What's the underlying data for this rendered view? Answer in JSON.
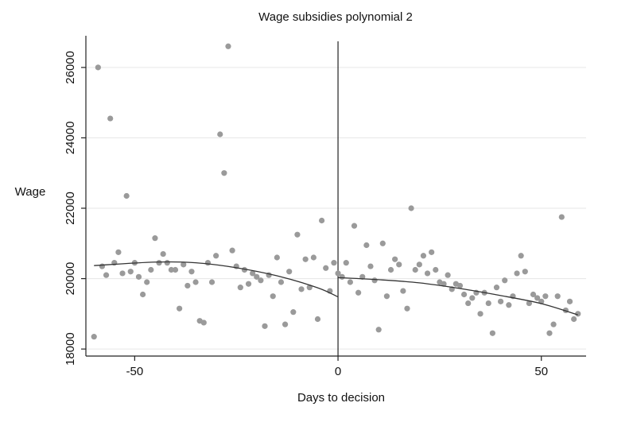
{
  "chart_data": {
    "type": "scatter",
    "title": "Wage subsidies polynomial 2",
    "xlabel": "Days to decision",
    "ylabel": "Wage",
    "xlim": [
      -62,
      61
    ],
    "ylim": [
      17800,
      26900
    ],
    "xticks": [
      -50,
      0,
      50
    ],
    "yticks": [
      18000,
      20000,
      22000,
      24000,
      26000
    ],
    "grid": true,
    "cutoff": 0,
    "colors": {
      "points": "#9a9a9a",
      "fit": "#333333",
      "grid": "#e6e6e6",
      "axis": "#222222"
    },
    "series": [
      {
        "points": [
          [
            -60,
            18350
          ],
          [
            -59,
            26000
          ],
          [
            -58,
            20350
          ],
          [
            -57,
            20100
          ],
          [
            -56,
            24550
          ],
          [
            -55,
            20450
          ],
          [
            -54,
            20750
          ],
          [
            -53,
            20150
          ],
          [
            -52,
            22350
          ],
          [
            -51,
            20200
          ],
          [
            -50,
            20450
          ],
          [
            -49,
            20050
          ],
          [
            -48,
            19550
          ],
          [
            -47,
            19900
          ],
          [
            -46,
            20250
          ],
          [
            -45,
            21150
          ],
          [
            -44,
            20450
          ],
          [
            -43,
            20700
          ],
          [
            -42,
            20450
          ],
          [
            -41,
            20250
          ],
          [
            -40,
            20250
          ],
          [
            -39,
            19150
          ],
          [
            -38,
            20400
          ],
          [
            -37,
            19800
          ],
          [
            -36,
            20200
          ],
          [
            -35,
            19900
          ],
          [
            -34,
            18800
          ],
          [
            -33,
            18750
          ],
          [
            -32,
            20450
          ],
          [
            -31,
            19900
          ],
          [
            -30,
            20650
          ],
          [
            -29,
            24100
          ],
          [
            -28,
            23000
          ],
          [
            -27,
            26600
          ],
          [
            -26,
            20800
          ],
          [
            -25,
            20350
          ],
          [
            -24,
            19750
          ],
          [
            -23,
            20250
          ],
          [
            -22,
            19850
          ],
          [
            -21,
            20150
          ],
          [
            -20,
            20050
          ],
          [
            -19,
            19950
          ],
          [
            -18,
            18650
          ],
          [
            -17,
            20100
          ],
          [
            -16,
            19500
          ],
          [
            -15,
            20600
          ],
          [
            -14,
            19900
          ],
          [
            -13,
            18700
          ],
          [
            -12,
            20200
          ],
          [
            -11,
            19050
          ],
          [
            -10,
            21250
          ],
          [
            -9,
            19700
          ],
          [
            -8,
            20550
          ],
          [
            -7,
            19750
          ],
          [
            -6,
            20600
          ],
          [
            -5,
            18850
          ],
          [
            -4,
            21650
          ],
          [
            -3,
            20300
          ],
          [
            -2,
            19650
          ],
          [
            -1,
            20450
          ],
          [
            0,
            20150
          ],
          [
            1,
            20050
          ],
          [
            2,
            20450
          ],
          [
            3,
            19900
          ],
          [
            4,
            21500
          ],
          [
            5,
            19600
          ],
          [
            6,
            20050
          ],
          [
            7,
            20950
          ],
          [
            8,
            20350
          ],
          [
            9,
            19950
          ],
          [
            10,
            18550
          ],
          [
            11,
            21000
          ],
          [
            12,
            19500
          ],
          [
            13,
            20250
          ],
          [
            14,
            20550
          ],
          [
            15,
            20400
          ],
          [
            16,
            19650
          ],
          [
            17,
            19150
          ],
          [
            18,
            22000
          ],
          [
            19,
            20250
          ],
          [
            20,
            20400
          ],
          [
            21,
            20650
          ],
          [
            22,
            20150
          ],
          [
            23,
            20750
          ],
          [
            24,
            20250
          ],
          [
            25,
            19900
          ],
          [
            26,
            19850
          ],
          [
            27,
            20100
          ],
          [
            28,
            19700
          ],
          [
            29,
            19850
          ],
          [
            30,
            19800
          ],
          [
            31,
            19550
          ],
          [
            32,
            19300
          ],
          [
            33,
            19450
          ],
          [
            34,
            19600
          ],
          [
            35,
            19000
          ],
          [
            36,
            19600
          ],
          [
            37,
            19300
          ],
          [
            38,
            18450
          ],
          [
            39,
            19750
          ],
          [
            40,
            19350
          ],
          [
            41,
            19950
          ],
          [
            42,
            19250
          ],
          [
            43,
            19500
          ],
          [
            44,
            20150
          ],
          [
            45,
            20650
          ],
          [
            46,
            20200
          ],
          [
            47,
            19300
          ],
          [
            48,
            19550
          ],
          [
            49,
            19450
          ],
          [
            50,
            19350
          ],
          [
            51,
            19500
          ],
          [
            52,
            18450
          ],
          [
            53,
            18700
          ],
          [
            54,
            19500
          ],
          [
            55,
            21750
          ],
          [
            56,
            19100
          ],
          [
            57,
            19350
          ],
          [
            58,
            18850
          ],
          [
            59,
            19000
          ]
        ]
      }
    ],
    "fit_lines": [
      {
        "points": [
          [
            -60,
            20370
          ],
          [
            -45,
            20470
          ],
          [
            -35,
            20450
          ],
          [
            -25,
            20310
          ],
          [
            -15,
            20080
          ],
          [
            -5,
            19740
          ],
          [
            0,
            19480
          ]
        ]
      },
      {
        "points": [
          [
            0,
            20030
          ],
          [
            10,
            19970
          ],
          [
            20,
            19880
          ],
          [
            30,
            19720
          ],
          [
            40,
            19520
          ],
          [
            50,
            19290
          ],
          [
            59,
            18970
          ]
        ]
      }
    ]
  }
}
